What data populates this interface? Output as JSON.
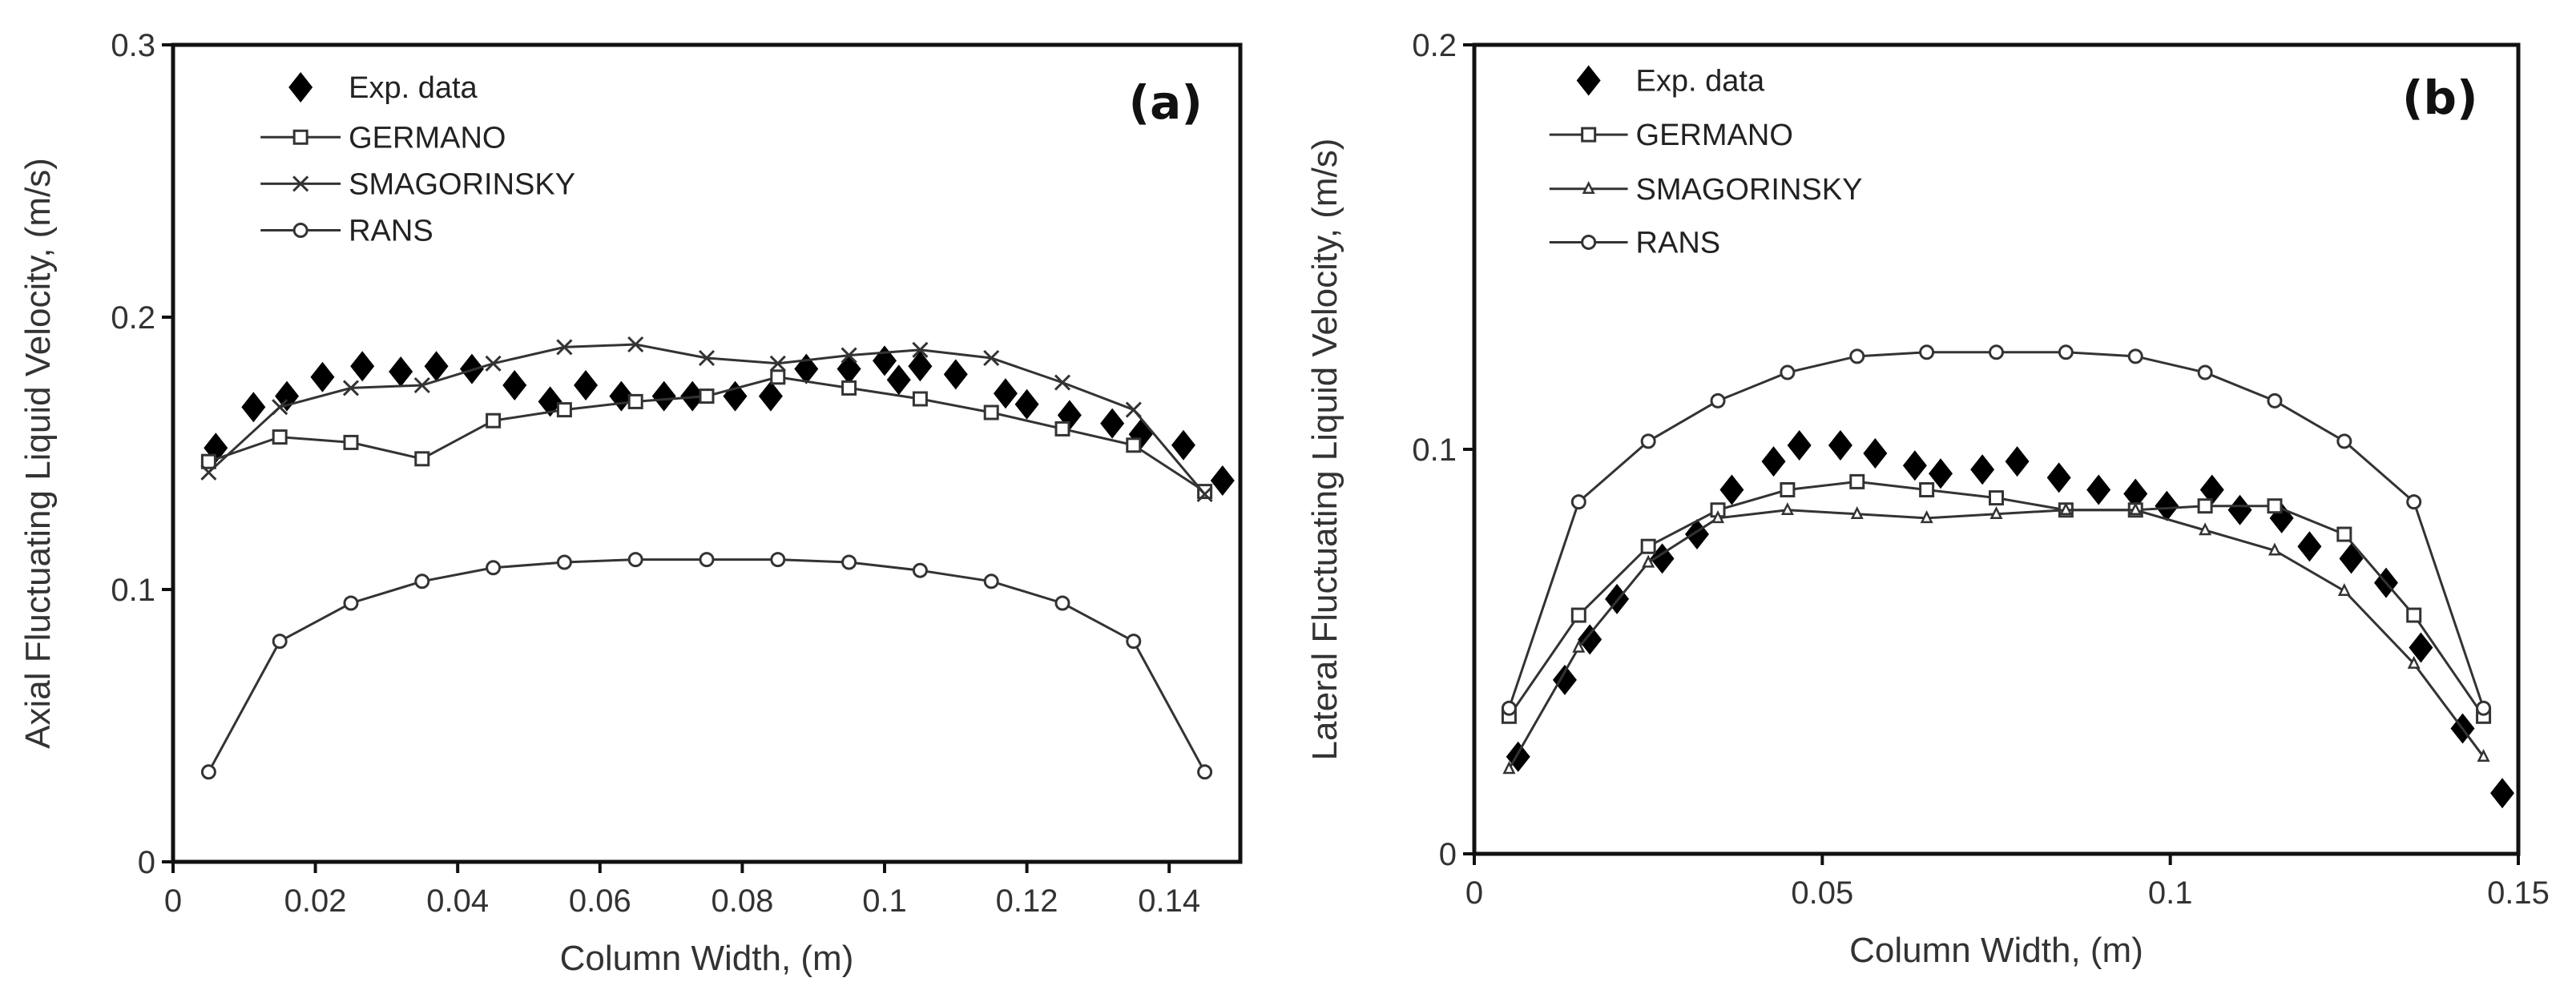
{
  "chart_data": [
    {
      "type": "line",
      "panel_label": "(a)",
      "xlabel": "Column Width, (m)",
      "ylabel": "Axial Fluctuating Liquid Velocity, (m/s)",
      "xlim": [
        0,
        0.15
      ],
      "ylim": [
        0,
        0.3
      ],
      "xticks": [
        0,
        0.02,
        0.04,
        0.06,
        0.08,
        0.1,
        0.12,
        0.14
      ],
      "xtick_labels": [
        "0",
        "0.02",
        "0.04",
        "0.06",
        "0.08",
        "0.1",
        "0.12",
        "0.14"
      ],
      "yticks": [
        0,
        0.1,
        0.2,
        0.3
      ],
      "ytick_labels": [
        "0",
        "0.1",
        "0.2",
        "0.3"
      ],
      "legend_position": "top-left",
      "series": [
        {
          "name": "Exp. data",
          "marker": "diamond",
          "line": false,
          "x": [
            0.006,
            0.0113,
            0.016,
            0.021,
            0.0266,
            0.032,
            0.037,
            0.042,
            0.048,
            0.053,
            0.058,
            0.063,
            0.069,
            0.073,
            0.079,
            0.084,
            0.089,
            0.095,
            0.1,
            0.102,
            0.105,
            0.11,
            0.117,
            0.12,
            0.126,
            0.132,
            0.136,
            0.142,
            0.1475
          ],
          "y": [
            0.152,
            0.167,
            0.171,
            0.178,
            0.182,
            0.18,
            0.182,
            0.181,
            0.175,
            0.169,
            0.175,
            0.171,
            0.171,
            0.171,
            0.171,
            0.171,
            0.181,
            0.181,
            0.184,
            0.177,
            0.182,
            0.179,
            0.172,
            0.168,
            0.164,
            0.161,
            0.157,
            0.153,
            0.14
          ]
        },
        {
          "name": "GERMANO",
          "marker": "square",
          "line": true,
          "x": [
            0.005,
            0.015,
            0.025,
            0.035,
            0.045,
            0.055,
            0.065,
            0.075,
            0.085,
            0.095,
            0.105,
            0.115,
            0.125,
            0.135,
            0.145
          ],
          "y": [
            0.147,
            0.156,
            0.154,
            0.148,
            0.162,
            0.166,
            0.169,
            0.171,
            0.178,
            0.174,
            0.17,
            0.165,
            0.159,
            0.153,
            0.136
          ]
        },
        {
          "name": "SMAGORINSKY",
          "marker": "x",
          "line": true,
          "x": [
            0.005,
            0.015,
            0.025,
            0.035,
            0.045,
            0.055,
            0.065,
            0.075,
            0.085,
            0.095,
            0.105,
            0.115,
            0.125,
            0.135,
            0.145
          ],
          "y": [
            0.143,
            0.167,
            0.174,
            0.175,
            0.183,
            0.189,
            0.19,
            0.185,
            0.183,
            0.186,
            0.188,
            0.185,
            0.176,
            0.166,
            0.135
          ]
        },
        {
          "name": "RANS",
          "marker": "circle",
          "line": true,
          "x": [
            0.005,
            0.015,
            0.025,
            0.035,
            0.045,
            0.055,
            0.065,
            0.075,
            0.085,
            0.095,
            0.105,
            0.115,
            0.125,
            0.135,
            0.145
          ],
          "y": [
            0.033,
            0.081,
            0.095,
            0.103,
            0.108,
            0.11,
            0.111,
            0.111,
            0.111,
            0.11,
            0.107,
            0.103,
            0.095,
            0.081,
            0.033
          ]
        }
      ]
    },
    {
      "type": "line",
      "panel_label": "(b)",
      "xlabel": "Column Width, (m)",
      "ylabel": "Lateral Fluctuating Liquid Velocity, (m/s)",
      "xlim": [
        0,
        0.15
      ],
      "ylim": [
        0,
        0.2
      ],
      "xticks": [
        0,
        0.05,
        0.1,
        0.15
      ],
      "xtick_labels": [
        "0",
        "0.05",
        "0.1",
        "0.15"
      ],
      "yticks": [
        0,
        0.1,
        0.2
      ],
      "ytick_labels": [
        "0",
        "0.1",
        "0.2"
      ],
      "legend_position": "top-left",
      "series": [
        {
          "name": "Exp. data",
          "marker": "diamond",
          "line": false,
          "x": [
            0.0063,
            0.013,
            0.0166,
            0.0205,
            0.027,
            0.032,
            0.037,
            0.043,
            0.0467,
            0.0526,
            0.0576,
            0.0633,
            0.067,
            0.073,
            0.078,
            0.084,
            0.0897,
            0.095,
            0.0995,
            0.106,
            0.11,
            0.116,
            0.12,
            0.126,
            0.131,
            0.136,
            0.142,
            0.1477
          ],
          "y": [
            0.024,
            0.043,
            0.053,
            0.063,
            0.073,
            0.079,
            0.09,
            0.097,
            0.101,
            0.101,
            0.099,
            0.096,
            0.094,
            0.095,
            0.097,
            0.093,
            0.09,
            0.089,
            0.086,
            0.09,
            0.085,
            0.083,
            0.076,
            0.073,
            0.067,
            0.051,
            0.031,
            0.015
          ]
        },
        {
          "name": "GERMANO",
          "marker": "square",
          "line": true,
          "x": [
            0.005,
            0.015,
            0.025,
            0.035,
            0.045,
            0.055,
            0.065,
            0.075,
            0.085,
            0.095,
            0.105,
            0.115,
            0.125,
            0.135,
            0.145
          ],
          "y": [
            0.034,
            0.059,
            0.076,
            0.085,
            0.09,
            0.092,
            0.09,
            0.088,
            0.085,
            0.085,
            0.086,
            0.086,
            0.079,
            0.059,
            0.034
          ]
        },
        {
          "name": "SMAGORINSKY",
          "marker": "triangle",
          "line": true,
          "x": [
            0.005,
            0.015,
            0.025,
            0.035,
            0.045,
            0.055,
            0.065,
            0.075,
            0.085,
            0.095,
            0.105,
            0.115,
            0.125,
            0.135,
            0.145
          ],
          "y": [
            0.021,
            0.051,
            0.072,
            0.083,
            0.085,
            0.084,
            0.083,
            0.084,
            0.085,
            0.085,
            0.08,
            0.075,
            0.065,
            0.047,
            0.024
          ]
        },
        {
          "name": "RANS",
          "marker": "circle",
          "line": true,
          "x": [
            0.005,
            0.015,
            0.025,
            0.035,
            0.045,
            0.055,
            0.065,
            0.075,
            0.085,
            0.095,
            0.105,
            0.115,
            0.125,
            0.135,
            0.145
          ],
          "y": [
            0.036,
            0.087,
            0.102,
            0.112,
            0.119,
            0.123,
            0.124,
            0.124,
            0.124,
            0.123,
            0.119,
            0.112,
            0.102,
            0.087,
            0.036
          ]
        }
      ]
    }
  ]
}
